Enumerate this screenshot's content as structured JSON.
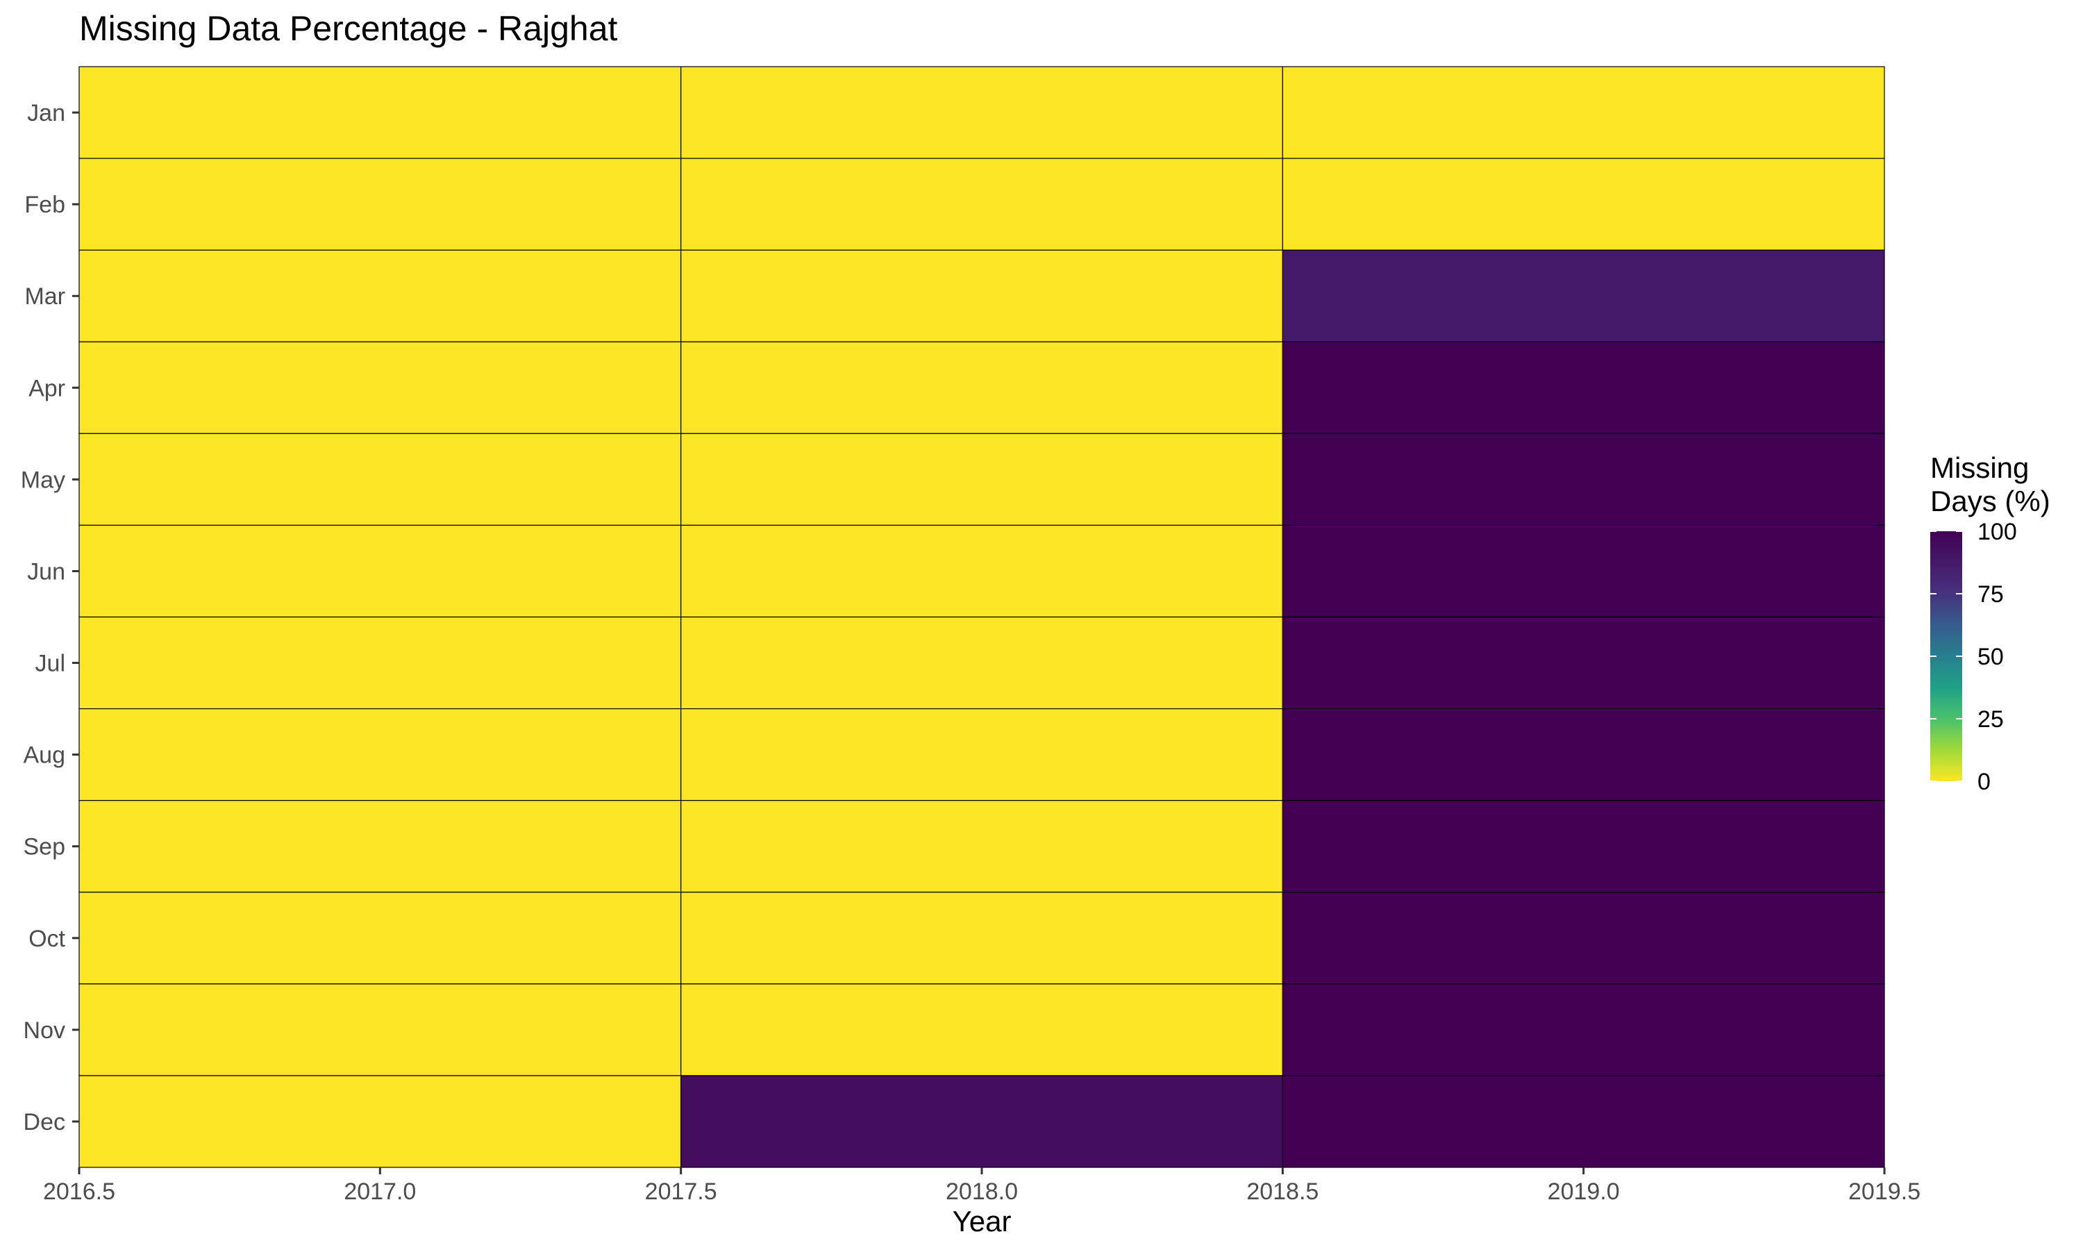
{
  "chart_data": {
    "type": "heatmap",
    "title": "Missing Data Percentage - Rajghat",
    "xlabel": "Year",
    "ylabel": "",
    "x_categories": [
      2017,
      2018,
      2019
    ],
    "xlim": [
      2016.5,
      2019.5
    ],
    "x_ticks": [
      "2016.5",
      "2017.0",
      "2017.5",
      "2018.0",
      "2018.5",
      "2019.0",
      "2019.5"
    ],
    "y_categories": [
      "Jan",
      "Feb",
      "Mar",
      "Apr",
      "May",
      "Jun",
      "Jul",
      "Aug",
      "Sep",
      "Oct",
      "Nov",
      "Dec"
    ],
    "values": [
      [
        0,
        0,
        0
      ],
      [
        0,
        0,
        0
      ],
      [
        0,
        0,
        87
      ],
      [
        0,
        0,
        100
      ],
      [
        0,
        0,
        100
      ],
      [
        0,
        0,
        100
      ],
      [
        0,
        0,
        100
      ],
      [
        0,
        0,
        100
      ],
      [
        0,
        0,
        100
      ],
      [
        0,
        0,
        100
      ],
      [
        0,
        0,
        100
      ],
      [
        0,
        94,
        100
      ]
    ],
    "legend": {
      "title_lines": [
        "Missing",
        "Days (%)"
      ],
      "range": [
        0,
        100
      ],
      "ticks": [
        "0",
        "25",
        "50",
        "75",
        "100"
      ],
      "placement": "right"
    },
    "colorscale": "viridis-reversed",
    "grid": false
  }
}
